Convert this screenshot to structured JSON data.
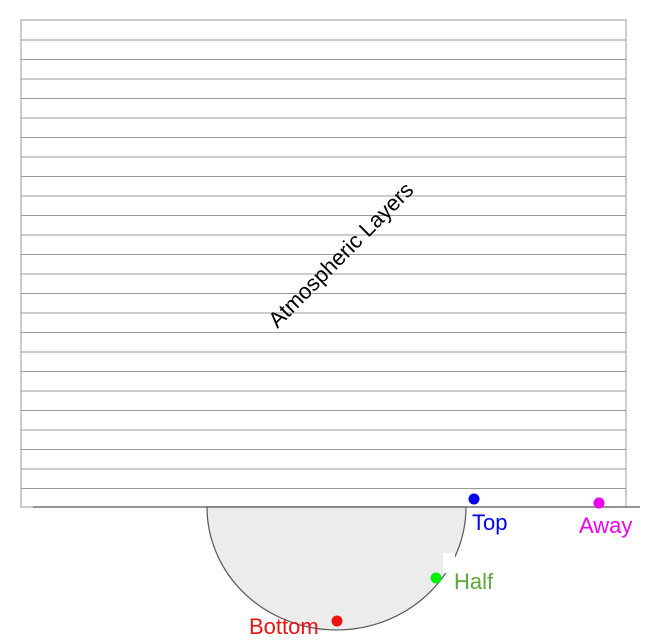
{
  "diagram": {
    "layer_label": "Atmospheric Layers",
    "points": [
      {
        "id": "top",
        "label": "Top",
        "color": "#0000ee"
      },
      {
        "id": "away",
        "label": "Away",
        "color": "#ee00ee"
      },
      {
        "id": "half",
        "label": "Half",
        "color": "#00ee00",
        "label_color": "#5aa83a"
      },
      {
        "id": "bottom",
        "label": "Bottom",
        "color": "#ee1111"
      }
    ],
    "colors": {
      "layer_line": "#999999",
      "ground_line": "#555555",
      "planet_fill": "#ececec",
      "planet_stroke": "#555555"
    }
  }
}
